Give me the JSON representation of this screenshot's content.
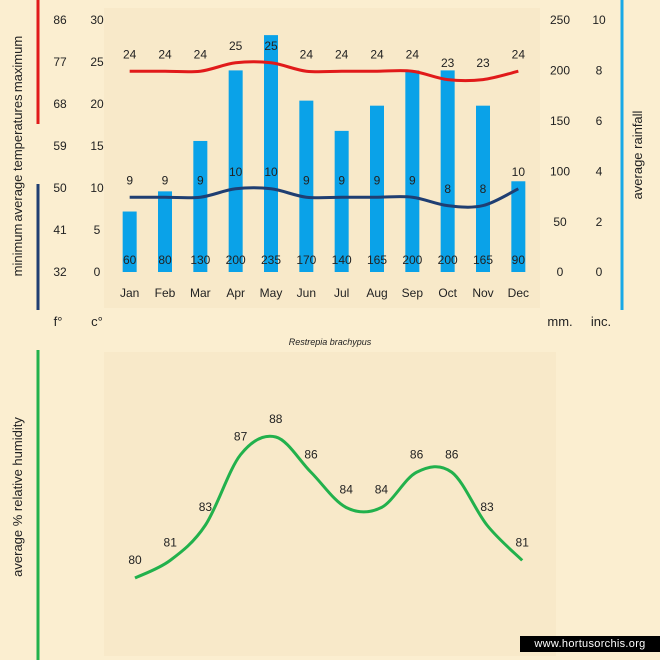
{
  "colors": {
    "background": "#fbeed0",
    "panel": "#f8e9c9",
    "rainfall_bar": "#0aa2e8",
    "max_line": "#e11a1a",
    "min_line": "#1f3e72",
    "humidity_line": "#22b14c",
    "rain_axis": "#17a8e6"
  },
  "chart_data": [
    {
      "type": "bar",
      "title": "",
      "subtitle": "Restrepia brachypus",
      "categories": [
        "Jan",
        "Feb",
        "Mar",
        "Apr",
        "May",
        "Jun",
        "Jul",
        "Aug",
        "Sep",
        "Oct",
        "Nov",
        "Dec"
      ],
      "series": [
        {
          "name": "average rainfall",
          "values": [
            60,
            80,
            130,
            200,
            235,
            170,
            140,
            165,
            200,
            200,
            165,
            90
          ],
          "axis": "right"
        },
        {
          "name": "maximum",
          "values": [
            24,
            24,
            24,
            25,
            25,
            24,
            24,
            24,
            24,
            23,
            23,
            24
          ],
          "axis": "left"
        },
        {
          "name": "minimum",
          "values": [
            9,
            9,
            9,
            10,
            10,
            9,
            9,
            9,
            9,
            8,
            8,
            10
          ],
          "axis": "left"
        }
      ],
      "axis_titles": {
        "left_prefix": "average temperatures",
        "left_maximum": "maximum",
        "left_minimum": "minimum",
        "right": "average rainfall"
      },
      "left_axis_f": {
        "ticks": [
          32,
          41,
          50,
          59,
          68,
          77,
          86
        ],
        "unit": "f°"
      },
      "left_axis_c": {
        "ticks": [
          0,
          5,
          10,
          15,
          20,
          25,
          30
        ],
        "unit": "c°",
        "ylim": [
          0,
          30
        ]
      },
      "right_axis_mm": {
        "ticks": [
          0,
          50,
          100,
          150,
          200,
          250
        ],
        "unit": "mm.",
        "ylim": [
          0,
          250
        ]
      },
      "right_axis_in": {
        "ticks": [
          0,
          2,
          4,
          6,
          8,
          10
        ],
        "unit": "inc."
      }
    },
    {
      "type": "line",
      "ylabel": "average %  relative humidity",
      "series": [
        {
          "values": [
            80,
            81,
            83,
            87,
            88,
            86,
            84,
            84,
            86,
            86,
            83,
            81
          ]
        }
      ]
    }
  ],
  "watermark": "www.hortusorchis.org"
}
